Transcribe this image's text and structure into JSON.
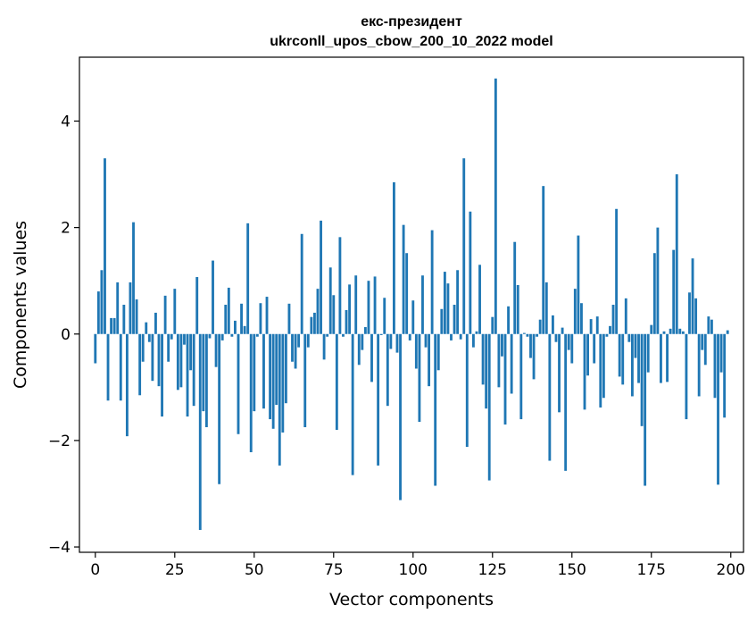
{
  "chart_data": {
    "type": "bar",
    "title": "екс-президент\nukrconll_upos_cbow_200_10_2022 model",
    "title_line1": "екс-президент",
    "title_line2": "ukrconll_upos_cbow_200_10_2022 model",
    "xlabel": "Vector components",
    "ylabel": "Components values",
    "xlim": [
      -5,
      204
    ],
    "ylim": [
      -4.1,
      5.2
    ],
    "xticks": [
      0,
      25,
      50,
      75,
      100,
      125,
      150,
      175,
      200
    ],
    "yticks": [
      -4,
      -2,
      0,
      2,
      4
    ],
    "ytick_labels": [
      "−4",
      "−2",
      "0",
      "2",
      "4"
    ],
    "xtick_labels": [
      "0",
      "25",
      "50",
      "75",
      "100",
      "125",
      "150",
      "175",
      "200"
    ],
    "bar_color": "#1f77b4",
    "grid": false,
    "x": [
      0,
      1,
      2,
      3,
      4,
      5,
      6,
      7,
      8,
      9,
      10,
      11,
      12,
      13,
      14,
      15,
      16,
      17,
      18,
      19,
      20,
      21,
      22,
      23,
      24,
      25,
      26,
      27,
      28,
      29,
      30,
      31,
      32,
      33,
      34,
      35,
      36,
      37,
      38,
      39,
      40,
      41,
      42,
      43,
      44,
      45,
      46,
      47,
      48,
      49,
      50,
      51,
      52,
      53,
      54,
      55,
      56,
      57,
      58,
      59,
      60,
      61,
      62,
      63,
      64,
      65,
      66,
      67,
      68,
      69,
      70,
      71,
      72,
      73,
      74,
      75,
      76,
      77,
      78,
      79,
      80,
      81,
      82,
      83,
      84,
      85,
      86,
      87,
      88,
      89,
      90,
      91,
      92,
      93,
      94,
      95,
      96,
      97,
      98,
      99,
      100,
      101,
      102,
      103,
      104,
      105,
      106,
      107,
      108,
      109,
      110,
      111,
      112,
      113,
      114,
      115,
      116,
      117,
      118,
      119,
      120,
      121,
      122,
      123,
      124,
      125,
      126,
      127,
      128,
      129,
      130,
      131,
      132,
      133,
      134,
      135,
      136,
      137,
      138,
      139,
      140,
      141,
      142,
      143,
      144,
      145,
      146,
      147,
      148,
      149,
      150,
      151,
      152,
      153,
      154,
      155,
      156,
      157,
      158,
      159,
      160,
      161,
      162,
      163,
      164,
      165,
      166,
      167,
      168,
      169,
      170,
      171,
      172,
      173,
      174,
      175,
      176,
      177,
      178,
      179,
      180,
      181,
      182,
      183,
      184,
      185,
      186,
      187,
      188,
      189,
      190,
      191,
      192,
      193,
      194,
      195,
      196,
      197,
      198,
      199
    ],
    "values": [
      -0.55,
      0.8,
      1.2,
      3.3,
      -1.25,
      0.3,
      0.3,
      0.97,
      -1.25,
      0.55,
      -1.92,
      0.97,
      2.1,
      0.65,
      -1.15,
      -0.52,
      0.22,
      -0.15,
      -0.88,
      0.4,
      -0.98,
      -1.55,
      0.72,
      -0.52,
      -0.1,
      0.85,
      -1.05,
      -1.0,
      -0.2,
      -1.55,
      -0.68,
      -1.35,
      1.07,
      -3.68,
      -1.45,
      -1.75,
      -0.08,
      1.38,
      -0.62,
      -2.82,
      -0.12,
      0.55,
      0.87,
      -0.05,
      0.25,
      -1.88,
      0.57,
      0.15,
      2.08,
      -2.22,
      -1.45,
      -0.05,
      0.58,
      -1.4,
      0.7,
      -1.6,
      -1.78,
      -1.33,
      -2.47,
      -1.85,
      -1.3,
      0.57,
      -0.52,
      -0.65,
      -0.25,
      1.88,
      -1.75,
      -0.25,
      0.32,
      0.4,
      0.85,
      2.13,
      -0.48,
      -0.05,
      1.25,
      0.73,
      -1.8,
      1.82,
      -0.05,
      0.45,
      0.93,
      -2.65,
      1.1,
      -0.58,
      -0.3,
      0.13,
      1.0,
      -0.9,
      1.08,
      -2.47,
      -0.02,
      0.68,
      -1.35,
      -0.28,
      2.85,
      -0.35,
      -3.12,
      2.05,
      1.52,
      -0.12,
      0.63,
      -0.65,
      -1.65,
      1.1,
      -0.25,
      -0.98,
      1.95,
      -2.85,
      -0.68,
      0.47,
      1.17,
      0.95,
      -0.12,
      0.55,
      1.2,
      -0.1,
      3.3,
      -2.12,
      2.3,
      -0.25,
      0.05,
      1.3,
      -0.95,
      -1.4,
      -2.75,
      0.32,
      4.8,
      -1.0,
      -0.42,
      -1.7,
      0.52,
      -1.12,
      1.73,
      0.92,
      -1.6,
      0.02,
      -0.05,
      -0.45,
      -0.85,
      -0.05,
      0.27,
      2.78,
      0.97,
      -2.38,
      0.35,
      -0.15,
      -1.47,
      0.12,
      -2.57,
      -0.3,
      -0.55,
      0.85,
      1.85,
      0.58,
      -1.42,
      -0.78,
      0.28,
      -0.55,
      0.33,
      -1.38,
      -1.2,
      -0.05,
      0.15,
      0.55,
      2.35,
      -0.8,
      -0.95,
      0.67,
      -0.15,
      -1.17,
      -0.45,
      -0.92,
      -1.73,
      -2.85,
      -0.72,
      0.17,
      1.52,
      2.0,
      -0.92,
      0.05,
      -0.9,
      0.1,
      1.58,
      3.0,
      0.1,
      0.05,
      -1.6,
      0.78,
      1.42,
      0.67,
      -1.17,
      -0.3,
      -0.58,
      0.33,
      0.27,
      -1.2,
      -2.83,
      -0.72,
      -1.57,
      0.07
    ]
  }
}
